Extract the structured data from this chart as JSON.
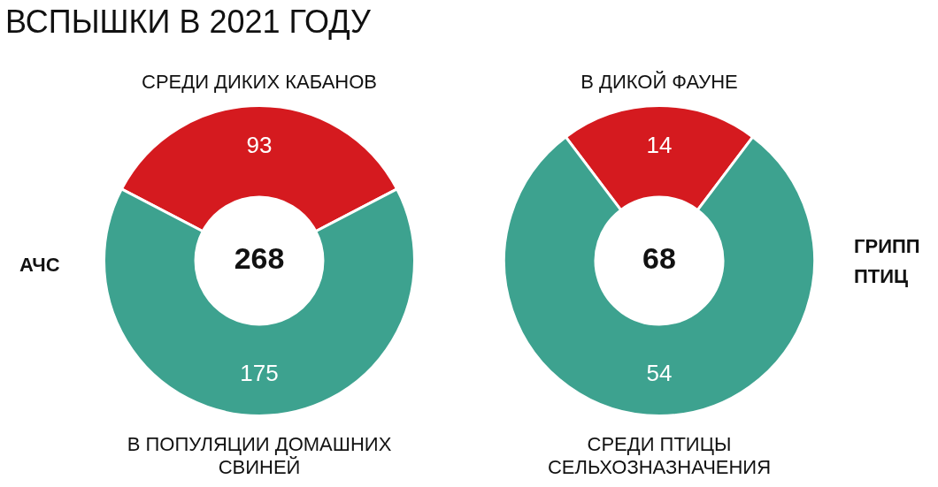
{
  "chart_data": [
    {
      "type": "donut",
      "title": "ВСПЫШКИ В 2021 ГОДУ",
      "subtitle": "АЧС",
      "categories": [
        "СРЕДИ ДИКИХ КАБАНОВ",
        "В ПОПУЛЯЦИИ ДОМАШНИХ СВИНЕЙ"
      ],
      "values": [
        93,
        175
      ],
      "colors": [
        "#d51a1f",
        "#3da28f"
      ],
      "data_labels": true,
      "annotations": [
        "268"
      ]
    },
    {
      "type": "donut",
      "subtitle": "ГРИПП ПТИЦ",
      "categories": [
        "В ДИКОЙ ФАУНЕ",
        "СРЕДИ ПТИЦЫ СЕЛЬХОЗНАЗНАЧЕНИЯ"
      ],
      "values": [
        14,
        54
      ],
      "colors": [
        "#d51a1f",
        "#3da28f"
      ],
      "data_labels": true,
      "annotations": [
        "68"
      ]
    }
  ]
}
